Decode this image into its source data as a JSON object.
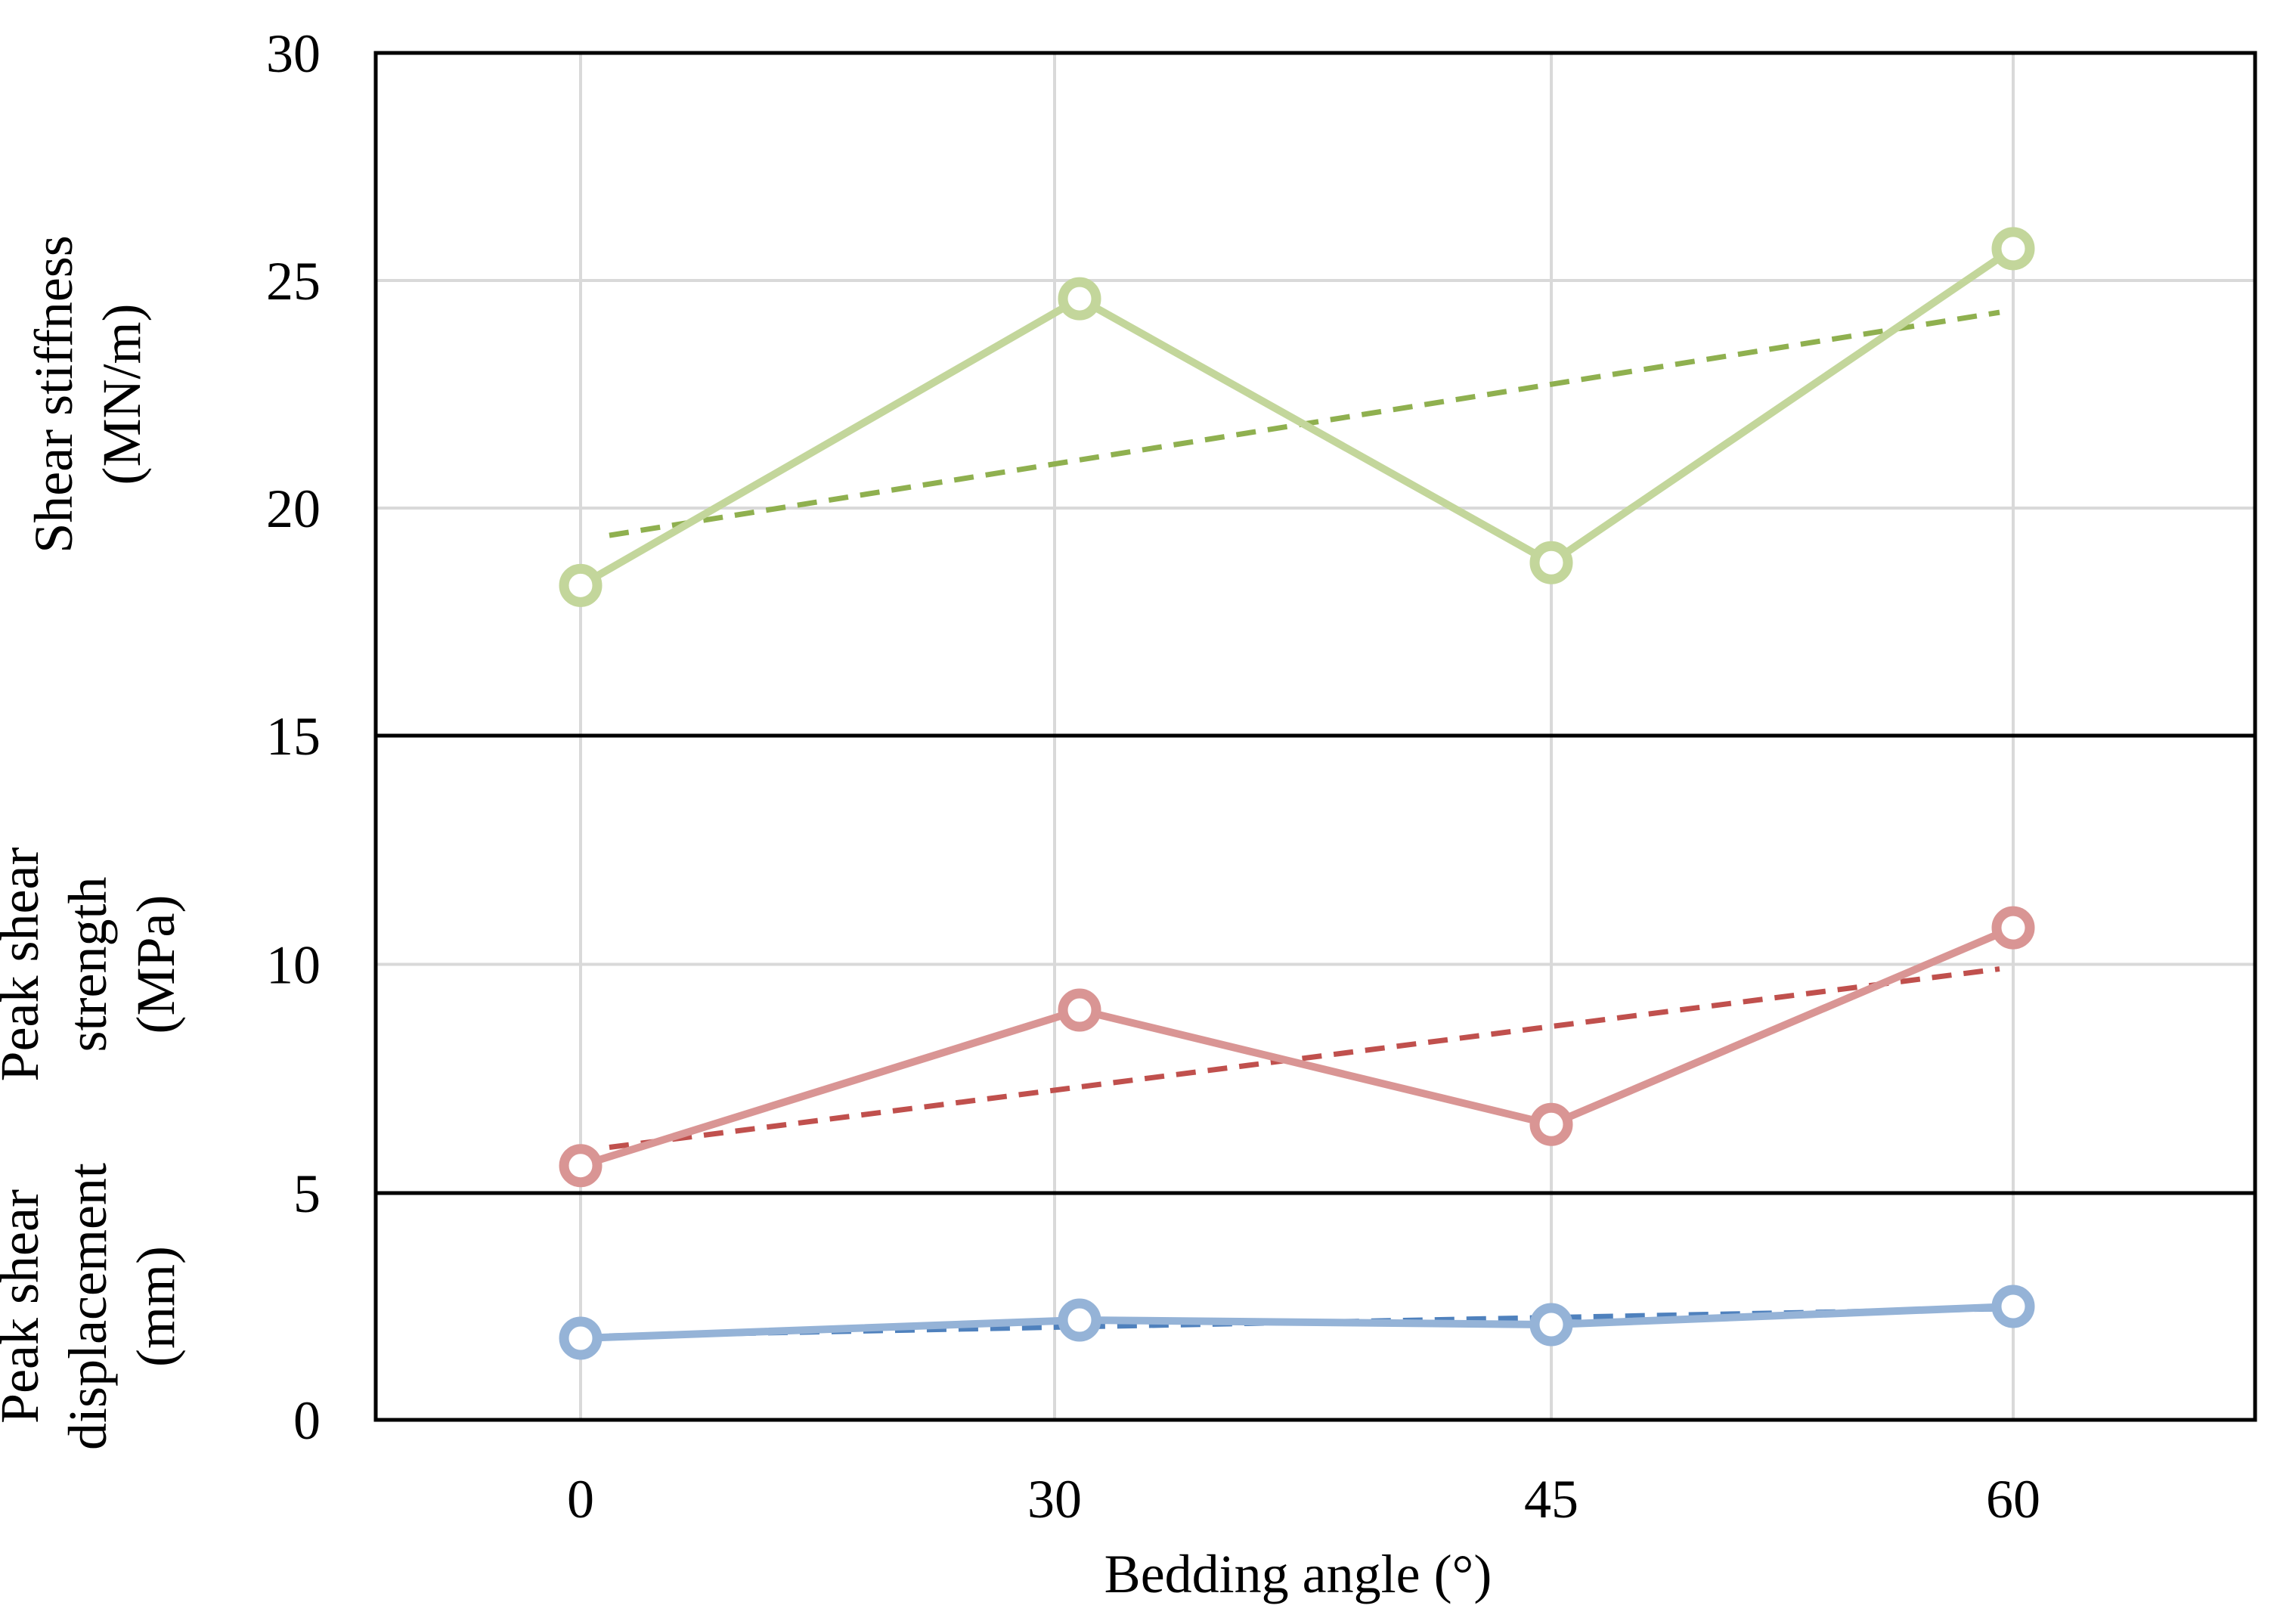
{
  "chart_data": {
    "type": "line",
    "title": "",
    "xlabel": "Bedding angle (°)",
    "x_categories": [
      "0",
      "30",
      "45",
      "60"
    ],
    "panels": [
      {
        "id": "shear-stiffness",
        "ylabel_lines": [
          "Shear stiffness",
          "(MN/m)"
        ],
        "ylim": [
          15,
          30
        ],
        "yticks": [
          15,
          20,
          25,
          30
        ],
        "line_color": "#c3d69b",
        "trend_color": "#8fb04f",
        "values": [
          18.3,
          24.6,
          18.8,
          25.7
        ],
        "trend": [
          19.4,
          24.3
        ]
      },
      {
        "id": "peak-shear-strength",
        "ylabel_lines": [
          "Peak shear",
          "strength",
          "(MPa)"
        ],
        "ylim": [
          5,
          15
        ],
        "yticks": [
          5,
          10,
          15
        ],
        "line_color": "#d99594",
        "trend_color": "#c0504d",
        "values": [
          5.6,
          9.0,
          6.5,
          10.8
        ],
        "trend": [
          6.0,
          9.9
        ]
      },
      {
        "id": "peak-shear-displacement",
        "ylabel_lines": [
          "Peak shear",
          "displacement",
          "(mm)"
        ],
        "ylim": [
          0,
          5
        ],
        "yticks": [
          0,
          5
        ],
        "line_color": "#95b3d7",
        "trend_color": "#4f81bd",
        "values": [
          1.8,
          2.2,
          2.1,
          2.5
        ],
        "trend": [
          1.85,
          2.45
        ]
      }
    ]
  }
}
